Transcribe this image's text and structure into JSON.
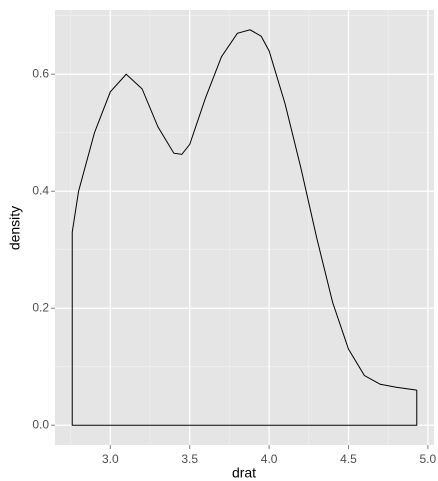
{
  "chart_data": {
    "type": "density",
    "x_label": "drat",
    "y_label": "density",
    "x": [
      2.76,
      2.8,
      2.9,
      3.0,
      3.1,
      3.2,
      3.3,
      3.4,
      3.45,
      3.5,
      3.6,
      3.7,
      3.8,
      3.88,
      3.95,
      4.0,
      4.1,
      4.2,
      4.3,
      4.4,
      4.5,
      4.6,
      4.7,
      4.8,
      4.93
    ],
    "values": [
      0.33,
      0.4,
      0.5,
      0.57,
      0.6,
      0.575,
      0.51,
      0.465,
      0.463,
      0.48,
      0.56,
      0.63,
      0.67,
      0.676,
      0.665,
      0.64,
      0.55,
      0.44,
      0.32,
      0.21,
      0.13,
      0.085,
      0.07,
      0.065,
      0.06
    ],
    "color": "#000000",
    "xlim": [
      2.6515,
      5.0385
    ],
    "xticks": [
      {
        "value": 3,
        "label": "3.0"
      },
      3.5,
      {
        "value": 4,
        "label": "4.0"
      },
      4.5,
      {
        "value": 5,
        "label": "5.0"
      }
    ],
    "ylim": [
      -0.0338,
      0.7098
    ],
    "yticks": [
      {
        "value": 0,
        "label": "0.0"
      },
      0.2,
      0.4,
      0.6
    ],
    "grid": true
  }
}
